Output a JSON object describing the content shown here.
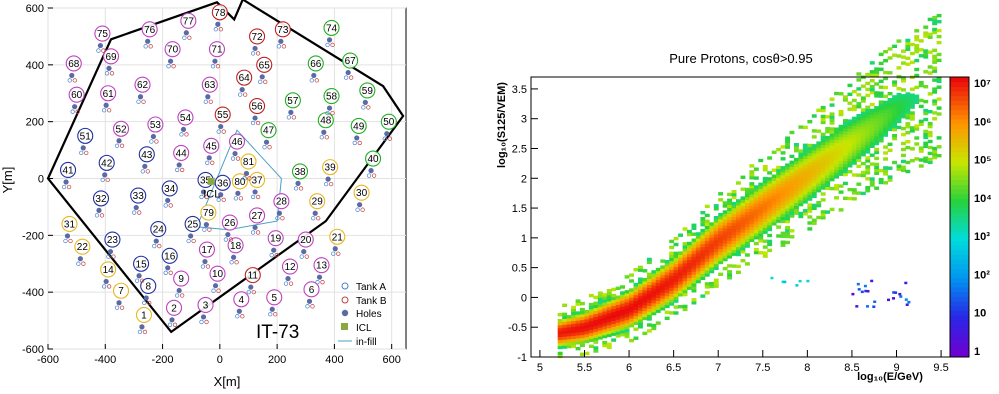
{
  "chart_data": [
    {
      "type": "scatter",
      "title": "",
      "xlabel": "X[m]",
      "ylabel": "Y[m]",
      "xlim": [
        -600,
        650
      ],
      "ylim": [
        -600,
        600
      ],
      "x_ticks": [
        "-600",
        "-400",
        "-200",
        "0",
        "200",
        "400",
        "600"
      ],
      "y_ticks": [
        "-600",
        "-400",
        "-200",
        "0",
        "200",
        "400",
        "600"
      ],
      "annotations": {
        "array_name": "IT-73",
        "icl_label": "ICL"
      },
      "legend": {
        "position": "bottom-right",
        "entries": [
          "Tank A",
          "Tank B",
          "Holes",
          "ICL",
          "in-fill"
        ]
      },
      "stations": [
        {
          "id": "1",
          "x": -265,
          "y": -480,
          "c": "y"
        },
        {
          "id": "2",
          "x": -160,
          "y": -455,
          "c": "m"
        },
        {
          "id": "3",
          "x": -50,
          "y": -445,
          "c": "m"
        },
        {
          "id": "4",
          "x": 75,
          "y": -425,
          "c": "m"
        },
        {
          "id": "5",
          "x": 190,
          "y": -418,
          "c": "m"
        },
        {
          "id": "6",
          "x": 320,
          "y": -390,
          "c": "m"
        },
        {
          "id": "7",
          "x": -345,
          "y": -395,
          "c": "y"
        },
        {
          "id": "8",
          "x": -250,
          "y": -378,
          "c": "b"
        },
        {
          "id": "9",
          "x": -135,
          "y": -352,
          "c": "m"
        },
        {
          "id": "10",
          "x": -8,
          "y": -335,
          "c": "m"
        },
        {
          "id": "11",
          "x": 115,
          "y": -340,
          "c": "r"
        },
        {
          "id": "12",
          "x": 245,
          "y": -310,
          "c": "m"
        },
        {
          "id": "13",
          "x": 355,
          "y": -305,
          "c": "m"
        },
        {
          "id": "14",
          "x": -390,
          "y": -320,
          "c": "y"
        },
        {
          "id": "15",
          "x": -275,
          "y": -300,
          "c": "b"
        },
        {
          "id": "16",
          "x": -175,
          "y": -272,
          "c": "b"
        },
        {
          "id": "17",
          "x": -45,
          "y": -250,
          "c": "m"
        },
        {
          "id": "18",
          "x": 55,
          "y": -235,
          "c": "m"
        },
        {
          "id": "19",
          "x": 195,
          "y": -210,
          "c": "m"
        },
        {
          "id": "20",
          "x": 300,
          "y": -215,
          "c": "m"
        },
        {
          "id": "21",
          "x": 410,
          "y": -205,
          "c": "y"
        },
        {
          "id": "22",
          "x": -480,
          "y": -240,
          "c": "y"
        },
        {
          "id": "23",
          "x": -375,
          "y": -215,
          "c": "b"
        },
        {
          "id": "24",
          "x": -215,
          "y": -178,
          "c": "b"
        },
        {
          "id": "25",
          "x": -95,
          "y": -160,
          "c": "b"
        },
        {
          "id": "26",
          "x": 35,
          "y": -155,
          "c": "m"
        },
        {
          "id": "27",
          "x": 130,
          "y": -130,
          "c": "m"
        },
        {
          "id": "28",
          "x": 215,
          "y": -80,
          "c": "m"
        },
        {
          "id": "29",
          "x": 340,
          "y": -80,
          "c": "y"
        },
        {
          "id": "30",
          "x": 495,
          "y": -50,
          "c": "y"
        },
        {
          "id": "31",
          "x": -525,
          "y": -160,
          "c": "y"
        },
        {
          "id": "32",
          "x": -415,
          "y": -70,
          "c": "b"
        },
        {
          "id": "33",
          "x": -285,
          "y": -60,
          "c": "b"
        },
        {
          "id": "34",
          "x": -175,
          "y": -35,
          "c": "b"
        },
        {
          "id": "35",
          "x": -50,
          "y": -5,
          "c": "b"
        },
        {
          "id": "36",
          "x": 10,
          "y": -15,
          "c": "b"
        },
        {
          "id": "37",
          "x": 130,
          "y": -5,
          "c": "y"
        },
        {
          "id": "38",
          "x": 280,
          "y": 25,
          "c": "g"
        },
        {
          "id": "39",
          "x": 385,
          "y": 40,
          "c": "y"
        },
        {
          "id": "40",
          "x": 535,
          "y": 70,
          "c": "g"
        },
        {
          "id": "41",
          "x": -530,
          "y": 30,
          "c": "b"
        },
        {
          "id": "42",
          "x": -395,
          "y": 55,
          "c": "b"
        },
        {
          "id": "43",
          "x": -255,
          "y": 85,
          "c": "b"
        },
        {
          "id": "44",
          "x": -135,
          "y": 90,
          "c": "m"
        },
        {
          "id": "45",
          "x": -30,
          "y": 115,
          "c": "m"
        },
        {
          "id": "46",
          "x": 60,
          "y": 130,
          "c": "m"
        },
        {
          "id": "47",
          "x": 170,
          "y": 170,
          "c": "g"
        },
        {
          "id": "48",
          "x": 370,
          "y": 205,
          "c": "g"
        },
        {
          "id": "49",
          "x": 485,
          "y": 185,
          "c": "g"
        },
        {
          "id": "50",
          "x": 590,
          "y": 200,
          "c": "g"
        },
        {
          "id": "51",
          "x": -470,
          "y": 150,
          "c": "b"
        },
        {
          "id": "52",
          "x": -345,
          "y": 175,
          "c": "m"
        },
        {
          "id": "53",
          "x": -225,
          "y": 190,
          "c": "m"
        },
        {
          "id": "54",
          "x": -120,
          "y": 215,
          "c": "m"
        },
        {
          "id": "55",
          "x": 10,
          "y": 225,
          "c": "r"
        },
        {
          "id": "56",
          "x": 130,
          "y": 255,
          "c": "r"
        },
        {
          "id": "57",
          "x": 255,
          "y": 275,
          "c": "g"
        },
        {
          "id": "58",
          "x": 390,
          "y": 290,
          "c": "g"
        },
        {
          "id": "59",
          "x": 515,
          "y": 310,
          "c": "g"
        },
        {
          "id": "60",
          "x": -500,
          "y": 295,
          "c": "m"
        },
        {
          "id": "61",
          "x": -390,
          "y": 300,
          "c": "m"
        },
        {
          "id": "62",
          "x": -270,
          "y": 330,
          "c": "m"
        },
        {
          "id": "63",
          "x": -35,
          "y": 330,
          "c": "m"
        },
        {
          "id": "64",
          "x": 85,
          "y": 355,
          "c": "r"
        },
        {
          "id": "65",
          "x": 155,
          "y": 400,
          "c": "r"
        },
        {
          "id": "66",
          "x": 335,
          "y": 405,
          "c": "g"
        },
        {
          "id": "67",
          "x": 455,
          "y": 415,
          "c": "g"
        },
        {
          "id": "68",
          "x": -510,
          "y": 405,
          "c": "m"
        },
        {
          "id": "69",
          "x": -380,
          "y": 430,
          "c": "m"
        },
        {
          "id": "70",
          "x": -165,
          "y": 455,
          "c": "m"
        },
        {
          "id": "71",
          "x": -10,
          "y": 455,
          "c": "m"
        },
        {
          "id": "72",
          "x": 130,
          "y": 500,
          "c": "r"
        },
        {
          "id": "73",
          "x": 220,
          "y": 525,
          "c": "r"
        },
        {
          "id": "74",
          "x": 390,
          "y": 530,
          "c": "g"
        },
        {
          "id": "75",
          "x": -410,
          "y": 510,
          "c": "m"
        },
        {
          "id": "76",
          "x": -245,
          "y": 525,
          "c": "m"
        },
        {
          "id": "77",
          "x": -110,
          "y": 555,
          "c": "m"
        },
        {
          "id": "78",
          "x": 0,
          "y": 585,
          "c": "r"
        },
        {
          "id": "79",
          "x": -40,
          "y": -120,
          "c": "y"
        },
        {
          "id": "80",
          "x": 70,
          "y": -10,
          "c": "y"
        },
        {
          "id": "81",
          "x": 100,
          "y": 60,
          "c": "y"
        }
      ],
      "boundary": [
        [
          -380,
          490
        ],
        [
          -10,
          620
        ],
        [
          50,
          560
        ],
        [
          80,
          630
        ],
        [
          570,
          325
        ],
        [
          640,
          220
        ],
        [
          370,
          -150
        ],
        [
          -170,
          -540
        ],
        [
          -600,
          0
        ]
      ],
      "infill": [
        [
          60,
          170
        ],
        [
          215,
          0
        ],
        [
          200,
          -150
        ],
        [
          30,
          -180
        ],
        [
          -80,
          -170
        ]
      ],
      "icl": {
        "x": -30,
        "y": -10
      }
    },
    {
      "type": "heatmap",
      "title": "Pure Protons, cosθ>0.95",
      "xlabel": "log₁₀(E/GeV)",
      "ylabel": "log₁₀(S125/VEM)",
      "xlim": [
        4.9,
        9.6
      ],
      "ylim": [
        -1,
        3.7
      ],
      "x_ticks": [
        "5",
        "5.5",
        "6",
        "6.5",
        "7",
        "7.5",
        "8",
        "8.5",
        "9",
        "9.5"
      ],
      "y_ticks": [
        "-1",
        "-0.5",
        "0",
        "0.5",
        "1",
        "1.5",
        "2",
        "2.5",
        "3",
        "3.5"
      ],
      "z_scale": "log",
      "z_ticks": [
        "1",
        "10",
        "10²",
        "10³",
        "10⁴",
        "10⁵",
        "10⁶",
        "10⁷"
      ],
      "ridge": [
        [
          5.2,
          -0.6
        ],
        [
          5.5,
          -0.5
        ],
        [
          6.0,
          -0.2
        ],
        [
          6.5,
          0.3
        ],
        [
          7.0,
          0.95
        ],
        [
          7.5,
          1.5
        ],
        [
          8.0,
          2.05
        ],
        [
          8.5,
          2.6
        ],
        [
          9.0,
          3.15
        ],
        [
          9.5,
          3.55
        ]
      ],
      "peak_x": 5.8
    }
  ]
}
